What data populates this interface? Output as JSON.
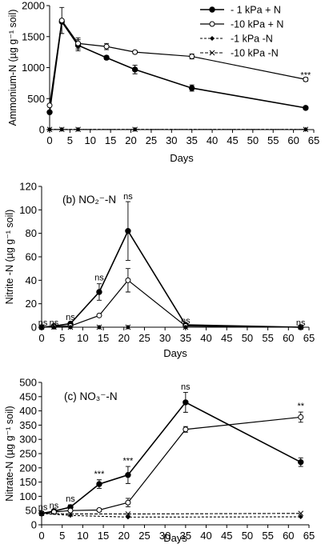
{
  "chart_data": [
    {
      "panel": "a",
      "type": "line",
      "title": "",
      "xlabel": "Days",
      "ylabel": "Ammonium-N  (µg g⁻¹ soil)",
      "xlim": [
        0,
        65
      ],
      "ylim": [
        0,
        2000
      ],
      "xticks": [
        "0",
        "5",
        "10",
        "15",
        "20",
        "25",
        "30",
        "35",
        "40",
        "45",
        "50",
        "55",
        "60",
        "65"
      ],
      "yticks": [
        "0",
        "500",
        "1000",
        "1500",
        "2000"
      ],
      "legend": {
        "placement": "top-right",
        "entries": [
          "- 1 kPa + N",
          "-10 kPa + N",
          "-1 kPa -N",
          "-10 kPa -N"
        ]
      },
      "series": [
        {
          "name": "- 1 kPa + N",
          "x": [
            0,
            3,
            7,
            14,
            21,
            35,
            63
          ],
          "values": [
            280,
            1740,
            1360,
            1160,
            970,
            670,
            350
          ],
          "err": [
            0,
            0,
            90,
            30,
            70,
            50,
            25
          ]
        },
        {
          "name": "-10 kPa + N",
          "x": [
            0,
            3,
            7,
            14,
            21,
            35,
            63
          ],
          "values": [
            390,
            1760,
            1390,
            1340,
            1250,
            1180,
            810
          ],
          "err": [
            0,
            210,
            90,
            50,
            25,
            40,
            30
          ]
        },
        {
          "name": "-1 kPa -N",
          "x": [
            0,
            3,
            7,
            21,
            63
          ],
          "values": [
            3,
            3,
            3,
            3,
            3
          ],
          "err": [
            0,
            0,
            0,
            0,
            0
          ]
        },
        {
          "name": "-10 kPa -N",
          "x": [
            0,
            3,
            7,
            21,
            63
          ],
          "values": [
            3,
            3,
            3,
            3,
            3
          ],
          "err": [
            0,
            0,
            0,
            0,
            0
          ]
        }
      ],
      "annotations": [
        {
          "text": "***",
          "x": 63,
          "y": 830
        }
      ]
    },
    {
      "panel": "b",
      "type": "line",
      "title": "(b) NO₂⁻-N",
      "xlabel": "Days",
      "ylabel": "Nitrite -N (µg g⁻¹ soil)",
      "xlim": [
        0,
        65
      ],
      "ylim": [
        0,
        120
      ],
      "xticks": [
        "0",
        "5",
        "10",
        "15",
        "20",
        "25",
        "30",
        "35",
        "40",
        "45",
        "50",
        "55",
        "60",
        "65"
      ],
      "yticks": [
        "0",
        "20",
        "40",
        "60",
        "80",
        "100",
        "120"
      ],
      "series": [
        {
          "name": "- 1 kPa + N",
          "x": [
            0,
            3,
            7,
            14,
            21,
            35,
            63
          ],
          "values": [
            0,
            1,
            3,
            30,
            82,
            2,
            0
          ],
          "err": [
            0,
            0,
            0,
            7,
            25,
            0,
            0
          ]
        },
        {
          "name": "-10 kPa + N",
          "x": [
            0,
            3,
            7,
            14,
            21,
            35,
            63
          ],
          "values": [
            0,
            0.5,
            1,
            10,
            40,
            1,
            0
          ],
          "err": [
            0,
            0,
            0,
            0,
            10,
            0,
            0
          ]
        },
        {
          "name": "-1 kPa -N",
          "x": [
            0,
            3,
            7,
            14,
            21,
            35,
            63
          ],
          "values": [
            0,
            0,
            0,
            0,
            0,
            0,
            0
          ],
          "err": [
            0,
            0,
            0,
            0,
            0,
            0,
            0
          ]
        },
        {
          "name": "-10 kPa -N",
          "x": [
            0,
            3,
            7,
            14,
            21,
            35,
            63
          ],
          "values": [
            0,
            0,
            0,
            0,
            0,
            0,
            0
          ],
          "err": [
            0,
            0,
            0,
            0,
            0,
            0,
            0
          ]
        }
      ],
      "annotations": [
        {
          "text": "ns",
          "x": 0.3,
          "y": 1.5
        },
        {
          "text": "ns",
          "x": 3,
          "y": 1.5
        },
        {
          "text": "ns",
          "x": 7,
          "y": 6
        },
        {
          "text": "ns",
          "x": 14,
          "y": 40
        },
        {
          "text": "ns",
          "x": 21,
          "y": 109
        },
        {
          "text": "ns",
          "x": 35,
          "y": 3
        },
        {
          "text": "ns",
          "x": 63,
          "y": 1.5
        }
      ]
    },
    {
      "panel": "c",
      "type": "line",
      "title": "(c) NO₃⁻-N",
      "xlabel": "Days",
      "ylabel": "Nitrate-N  (µg g⁻¹ soil)",
      "xlim": [
        0,
        65
      ],
      "ylim": [
        0,
        500
      ],
      "xticks": [
        "0",
        "5",
        "10",
        "15",
        "20",
        "25",
        "30",
        "35",
        "40",
        "45",
        "50",
        "55",
        "60",
        "65"
      ],
      "yticks": [
        "0",
        "50",
        "100",
        "150",
        "200",
        "250",
        "300",
        "350",
        "400",
        "450",
        "500"
      ],
      "series": [
        {
          "name": "- 1 kPa + N",
          "x": [
            0,
            3,
            7,
            14,
            21,
            35,
            63
          ],
          "values": [
            40,
            48,
            62,
            143,
            175,
            430,
            220
          ],
          "err": [
            0,
            0,
            8,
            15,
            30,
            35,
            15
          ]
        },
        {
          "name": "-10 kPa + N",
          "x": [
            0,
            3,
            7,
            14,
            21,
            35,
            63
          ],
          "values": [
            40,
            45,
            50,
            52,
            78,
            335,
            378
          ],
          "err": [
            0,
            0,
            5,
            5,
            15,
            10,
            18
          ]
        },
        {
          "name": "-1 kPa -N",
          "x": [
            0,
            7,
            21,
            63
          ],
          "values": [
            40,
            33,
            27,
            28
          ],
          "err": [
            0,
            0,
            0,
            0
          ]
        },
        {
          "name": "-10 kPa -N",
          "x": [
            0,
            7,
            21,
            63
          ],
          "values": [
            40,
            38,
            38,
            40
          ],
          "err": [
            0,
            0,
            0,
            0
          ]
        }
      ],
      "annotations": [
        {
          "text": "ns",
          "x": 0.3,
          "y": 52
        },
        {
          "text": "ns",
          "x": 3,
          "y": 58
        },
        {
          "text": "ns",
          "x": 7,
          "y": 82
        },
        {
          "text": "***",
          "x": 14,
          "y": 168
        },
        {
          "text": "***",
          "x": 21,
          "y": 215
        },
        {
          "text": "ns",
          "x": 35,
          "y": 475
        },
        {
          "text": "**",
          "x": 63,
          "y": 408
        }
      ]
    }
  ]
}
